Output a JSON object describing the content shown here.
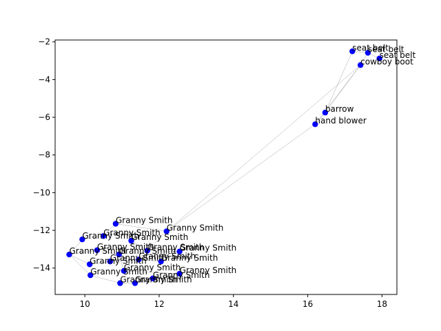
{
  "chart_data": {
    "type": "scatter",
    "title": "",
    "xlabel": "",
    "ylabel": "",
    "xlim": [
      9.2,
      18.4
    ],
    "ylim": [
      -15.4,
      -1.9
    ],
    "xticks": [
      10,
      12,
      14,
      16,
      18
    ],
    "yticks": [
      -14,
      -12,
      -10,
      -8,
      -6,
      -4,
      -2
    ],
    "xtick_labels": [
      "10",
      "12",
      "14",
      "16",
      "18"
    ],
    "ytick_labels": [
      "−14",
      "−12",
      "−10",
      "−8",
      "−6",
      "−4",
      "−2"
    ],
    "grid": false,
    "marker_color": "#0000ff",
    "edge_color": "#808080",
    "points": [
      {
        "label": "seat belt",
        "x": 17.2,
        "y": -2.5
      },
      {
        "label": "seat belt",
        "x": 17.62,
        "y": -2.58
      },
      {
        "label": "seat belt",
        "x": 17.93,
        "y": -2.88
      },
      {
        "label": "cowboy boot",
        "x": 17.42,
        "y": -3.23
      },
      {
        "label": "barrow",
        "x": 16.47,
        "y": -5.75
      },
      {
        "label": "hand blower",
        "x": 16.2,
        "y": -6.37
      },
      {
        "label": "Granny Smith",
        "x": 10.83,
        "y": -11.65
      },
      {
        "label": "Granny Smith",
        "x": 12.2,
        "y": -12.05
      },
      {
        "label": "Granny Smith",
        "x": 10.5,
        "y": -12.3
      },
      {
        "label": "Granny Smith",
        "x": 9.93,
        "y": -12.48
      },
      {
        "label": "Granny Smith",
        "x": 11.25,
        "y": -12.55
      },
      {
        "label": "Granny Smith",
        "x": 10.33,
        "y": -13.05
      },
      {
        "label": "Granny Smith",
        "x": 11.68,
        "y": -13.08
      },
      {
        "label": "Granny Smith",
        "x": 12.55,
        "y": -13.12
      },
      {
        "label": "Granny Smith",
        "x": 9.58,
        "y": -13.28
      },
      {
        "label": "Granny Smith",
        "x": 10.92,
        "y": -13.28
      },
      {
        "label": "Granny Smith",
        "x": 11.45,
        "y": -13.55
      },
      {
        "label": "Granny Smith",
        "x": 12.05,
        "y": -13.65
      },
      {
        "label": "Granny Smith",
        "x": 10.68,
        "y": -13.65
      },
      {
        "label": "Granny Smith",
        "x": 10.13,
        "y": -13.8
      },
      {
        "label": "Granny Smith",
        "x": 11.05,
        "y": -14.15
      },
      {
        "label": "Granny Smith",
        "x": 12.55,
        "y": -14.3
      },
      {
        "label": "Granny Smith",
        "x": 10.15,
        "y": -14.38
      },
      {
        "label": "Granny Smith",
        "x": 11.83,
        "y": -14.55
      },
      {
        "label": "Granny Smith",
        "x": 10.95,
        "y": -14.8
      },
      {
        "label": "Granny Smith",
        "x": 11.35,
        "y": -14.8
      }
    ],
    "edges": [
      [
        0,
        1
      ],
      [
        1,
        2
      ],
      [
        1,
        3
      ],
      [
        0,
        4
      ],
      [
        4,
        5
      ],
      [
        4,
        3
      ],
      [
        5,
        3
      ],
      [
        5,
        7
      ],
      [
        3,
        7
      ],
      [
        7,
        6
      ],
      [
        7,
        12
      ],
      [
        6,
        8
      ],
      [
        8,
        9
      ],
      [
        9,
        14
      ],
      [
        14,
        11
      ],
      [
        11,
        15
      ],
      [
        14,
        19
      ],
      [
        19,
        18
      ],
      [
        18,
        16
      ],
      [
        16,
        17
      ],
      [
        17,
        13
      ],
      [
        13,
        12
      ],
      [
        12,
        10
      ],
      [
        10,
        16
      ],
      [
        15,
        20
      ],
      [
        20,
        21
      ],
      [
        21,
        23
      ],
      [
        23,
        25
      ],
      [
        25,
        24
      ],
      [
        24,
        22
      ],
      [
        22,
        14
      ]
    ]
  }
}
